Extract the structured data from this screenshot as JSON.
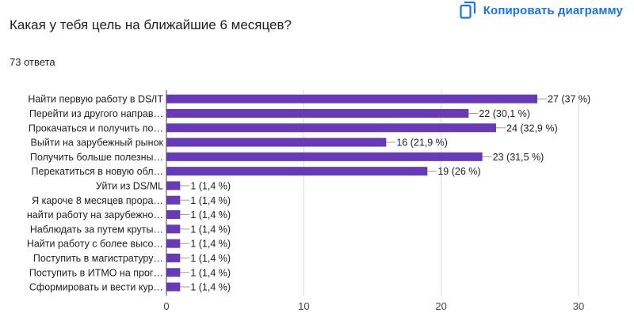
{
  "header": {
    "copy_label": "Копировать диаграмму",
    "copy_icon": "copy-icon"
  },
  "question": "Какая у тебя цель на ближайшие 6 месяцев?",
  "response_count": "73 ответа",
  "colors": {
    "bar": "#673ab7",
    "accent": "#1a73e8",
    "axis": "#444444",
    "grid": "#d9d9d9"
  },
  "chart_data": {
    "type": "bar",
    "orientation": "horizontal",
    "categories": [
      "Найти первую работу в DS/IT",
      "Перейти из другого направ…",
      "Прокачаться и получить по…",
      "Выйти на зарубежный рынок",
      "Получить больше полезны…",
      "Перекатиться в новую обл…",
      "Уйти из DS/ML",
      "Я кароче 8 месяцев прора…",
      "найти работу на зарубежно…",
      "Наблюдать за путем круты…",
      "Найти работу с более высо…",
      "Поступить в магистратуру…",
      "Поступить в ИТМО на прог…",
      "Сформировать и вести кур…"
    ],
    "values": [
      27,
      22,
      24,
      16,
      23,
      19,
      1,
      1,
      1,
      1,
      1,
      1,
      1,
      1
    ],
    "data_labels": [
      "27 (37 %)",
      "22 (30,1 %)",
      "24 (32,9 %)",
      "16 (21,9 %)",
      "23 (31,5 %)",
      "19 (26 %)",
      "1 (1,4 %)",
      "1 (1,4 %)",
      "1 (1,4 %)",
      "1 (1,4 %)",
      "1 (1,4 %)",
      "1 (1,4 %)",
      "1 (1,4 %)",
      "1 (1,4 %)"
    ],
    "x_ticks": [
      "0",
      "10",
      "20",
      "30"
    ],
    "xlim": [
      0,
      30
    ],
    "grid": true,
    "legend": "none"
  }
}
